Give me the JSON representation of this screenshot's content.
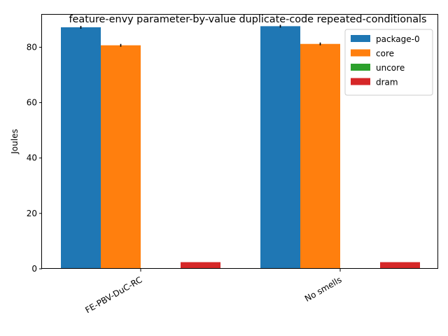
{
  "chart_data": {
    "type": "bar",
    "title": "feature-envy parameter-by-value duplicate-code repeated-conditionals",
    "xlabel": "",
    "ylabel": "Joules",
    "categories": [
      "FE-PBV-DuC-RC",
      "No smells"
    ],
    "ylim": [
      0,
      92
    ],
    "yticks": [
      0,
      20,
      40,
      60,
      80
    ],
    "grid": false,
    "legend": "top-right",
    "series": [
      {
        "name": "package-0",
        "color": "#1f77b4",
        "values": [
          87.2,
          87.6
        ],
        "errors": [
          0.5,
          0.5
        ]
      },
      {
        "name": "core",
        "color": "#ff7f0e",
        "values": [
          80.7,
          81.2
        ],
        "errors": [
          0.5,
          0.5
        ]
      },
      {
        "name": "uncore",
        "color": "#2ca02c",
        "values": [
          0,
          0
        ],
        "errors": [
          0,
          0
        ]
      },
      {
        "name": "dram",
        "color": "#d62728",
        "values": [
          2.4,
          2.4
        ],
        "errors": [
          0,
          0
        ]
      }
    ]
  }
}
